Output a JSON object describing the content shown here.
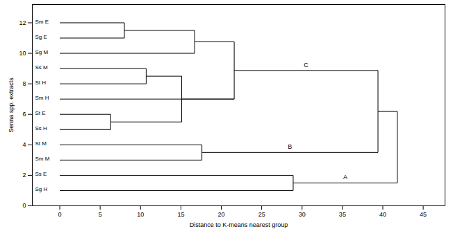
{
  "chart_data": {
    "type": "dendrogram",
    "x_label": "Distance to K-means nearest group",
    "y_label": "Senna spp. extracts",
    "xlim": [
      -3.4,
      47.7
    ],
    "xticks": [
      0,
      5,
      10,
      15,
      20,
      25,
      30,
      35,
      40,
      45
    ],
    "ylim": [
      0,
      13.2
    ],
    "yticks": [
      0,
      2,
      4,
      6,
      8,
      10,
      12
    ],
    "color": "#000000",
    "leaves": [
      {
        "label": "Sm E",
        "y": 12
      },
      {
        "label": "Sg E",
        "y": 11
      },
      {
        "label": "Sg M",
        "y": 10
      },
      {
        "label": "Ss M",
        "y": 9
      },
      {
        "label": "St H",
        "y": 8
      },
      {
        "label": "Sm H",
        "y": 7
      },
      {
        "label": "St E",
        "y": 6
      },
      {
        "label": "Ss H",
        "y": 5
      },
      {
        "label": "St M",
        "y": 4
      },
      {
        "label": "Sm M",
        "y": 3
      },
      {
        "label": "Ss E",
        "y": 2
      },
      {
        "label": "Sg H",
        "y": 1
      }
    ],
    "merges": [
      {
        "children": [
          "Sm E",
          "Sg E"
        ],
        "height": 8.0
      },
      {
        "children": [
          0,
          "Sg M"
        ],
        "height": 16.7
      },
      {
        "children": [
          "Ss M",
          "St H"
        ],
        "height": 10.7
      },
      {
        "children": [
          "St E",
          "Ss H"
        ],
        "height": 6.3
      },
      {
        "children": [
          2,
          3
        ],
        "height": 15.1
      },
      {
        "children": [
          4,
          "Sm H"
        ],
        "height": 21.6
      },
      {
        "children": [
          1,
          5
        ],
        "height": 21.6,
        "label": "C"
      },
      {
        "children": [
          "St M",
          "Sm M"
        ],
        "height": 17.6,
        "label": "B"
      },
      {
        "children": [
          6,
          7
        ],
        "height": 39.4
      },
      {
        "children": [
          "Ss E",
          "Sg H"
        ],
        "height": 28.9,
        "label": "A"
      },
      {
        "children": [
          8,
          9
        ],
        "height": 41.8
      }
    ]
  }
}
